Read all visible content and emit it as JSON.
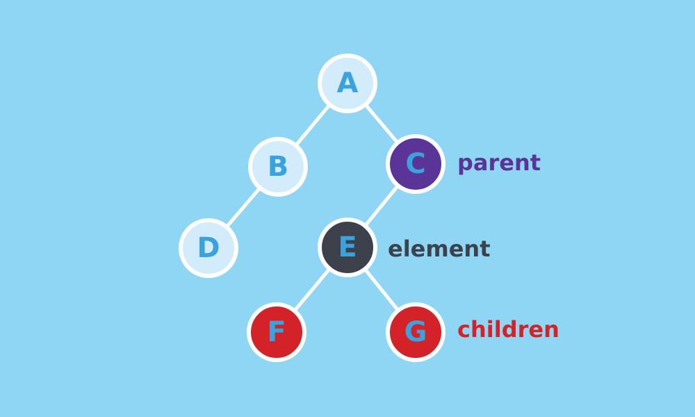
{
  "colors": {
    "background": "#8fd6f5",
    "edge": "#ffffff",
    "node_default_fill": "#d3ecfb",
    "node_parent_fill": "#5b3497",
    "node_element_fill": "#3d414c",
    "node_children_fill": "#d32228",
    "node_letter": "#3aa2dd"
  },
  "nodes": [
    {
      "id": "A",
      "label": "A",
      "role": "default"
    },
    {
      "id": "B",
      "label": "B",
      "role": "default"
    },
    {
      "id": "C",
      "label": "C",
      "role": "parent"
    },
    {
      "id": "D",
      "label": "D",
      "role": "default"
    },
    {
      "id": "E",
      "label": "E",
      "role": "element"
    },
    {
      "id": "F",
      "label": "F",
      "role": "children"
    },
    {
      "id": "G",
      "label": "G",
      "role": "children"
    }
  ],
  "edges": [
    {
      "from": "A",
      "to": "B"
    },
    {
      "from": "A",
      "to": "C"
    },
    {
      "from": "B",
      "to": "D"
    },
    {
      "from": "C",
      "to": "E"
    },
    {
      "from": "E",
      "to": "F"
    },
    {
      "from": "E",
      "to": "G"
    }
  ],
  "annotations": {
    "parent": {
      "text": "parent",
      "color": "#5b3497"
    },
    "element": {
      "text": "element",
      "color": "#3d414c"
    },
    "children": {
      "text": "children",
      "color": "#d32228"
    }
  }
}
